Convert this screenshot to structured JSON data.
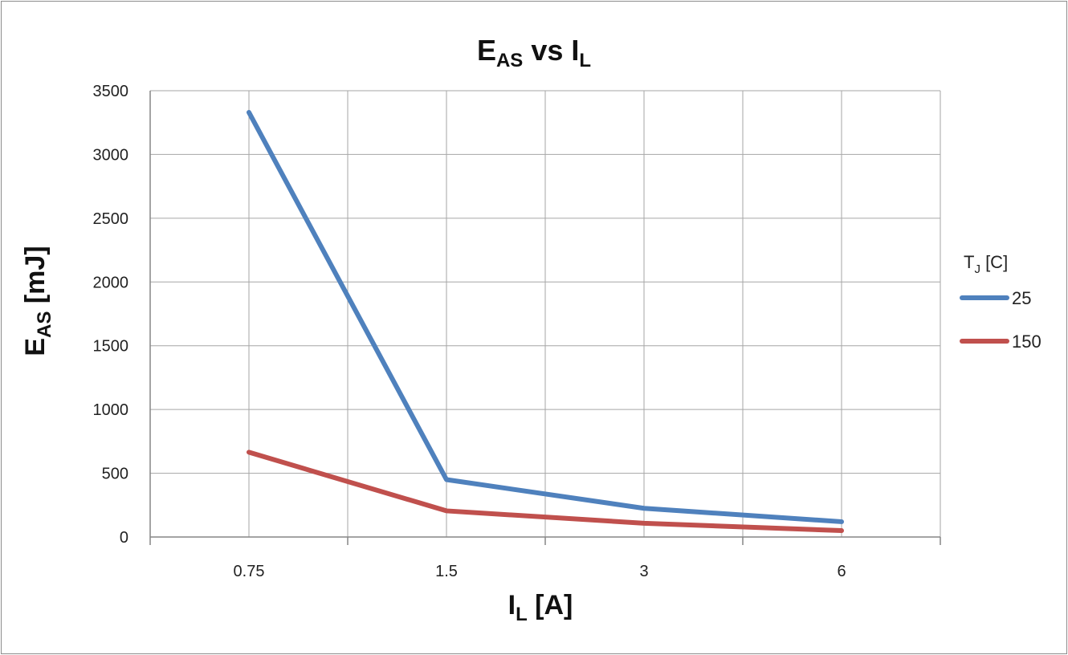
{
  "chart_data": {
    "type": "line",
    "title": {
      "main": "E",
      "sub": "AS",
      "mid": " vs I",
      "sub2": "L"
    },
    "xlabel": {
      "main": "I",
      "sub": "L",
      "rest": " [A]"
    },
    "ylabel": {
      "main": "E",
      "sub": "AS",
      "rest": " [mJ]"
    },
    "categories": [
      "0.75",
      "1.5",
      "3",
      "6"
    ],
    "ylim": [
      0,
      3500
    ],
    "yticks": [
      "0",
      "500",
      "1000",
      "1500",
      "2000",
      "2500",
      "3000",
      "3500"
    ],
    "grid": true,
    "legend": {
      "title_main": "T",
      "title_sub": "J",
      "title_rest": " [C]",
      "placement": "right"
    },
    "series": [
      {
        "name": "25",
        "color": "#4F81BD",
        "values": [
          3330,
          450,
          225,
          120
        ]
      },
      {
        "name": "150",
        "color": "#C0504D",
        "values": [
          665,
          205,
          108,
          50
        ]
      }
    ]
  }
}
